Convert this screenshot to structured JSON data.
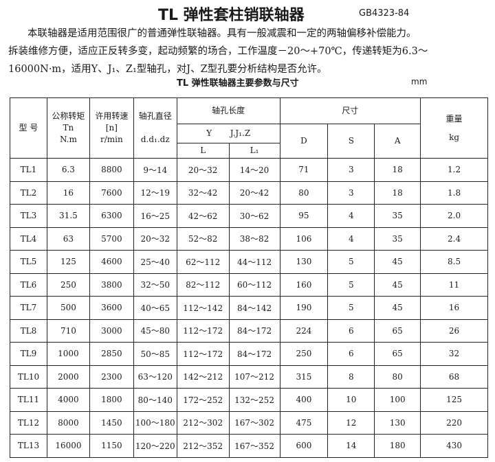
{
  "title": "TL 弹性套柱销联轴器",
  "standard": "GB4323-84",
  "paragraph": [
    "本联轴器是适用范围很广的普通弹性联轴器。具有一般减震和一定的两轴偏移补偿能力。",
    "拆装维修方便，适应正反转多变，起动频繁的场合，工作温度－20～+70℃，传递转矩为6.3～",
    "16000N·m，适用Y、J₁、Z₁型轴孔，对J、Z型孔要分析结构是否允许。"
  ],
  "table_title": "TL 弹性联轴器主要参数与尺寸",
  "unit": "mm",
  "headers": {
    "model": "型 号",
    "torque": [
      "公称转矩",
      "Tn",
      "N.m"
    ],
    "speed": [
      "许用转速",
      "[n]",
      "r/min"
    ],
    "bore": [
      "轴孔直径",
      "d.d₁.dz"
    ],
    "bore_length": "轴孔长度",
    "y": "Y",
    "jz": "J.J₁.Z",
    "L": "L",
    "L1": "L₁",
    "dims": "尺寸",
    "D": "D",
    "S": "S",
    "A": "A",
    "weight": [
      "重量",
      "kg"
    ]
  },
  "rows": [
    [
      "TL1",
      "6.3",
      "8800",
      "9～14",
      "20～32",
      "14～20",
      "71",
      "3",
      "18",
      "1.2"
    ],
    [
      "TL2",
      "16",
      "7600",
      "12～19",
      "32～42",
      "20～42",
      "80",
      "3",
      "18",
      "1.8"
    ],
    [
      "TL3",
      "31.5",
      "6300",
      "16～25",
      "42～62",
      "30～62",
      "95",
      "4",
      "35",
      "2.0"
    ],
    [
      "TL4",
      "63",
      "5700",
      "20～32",
      "52～82",
      "38～82",
      "106",
      "4",
      "35",
      "2.4"
    ],
    [
      "TL5",
      "125",
      "4600",
      "25～40",
      "62～112",
      "44～112",
      "130",
      "5",
      "45",
      "8.5"
    ],
    [
      "TL6",
      "250",
      "3800",
      "32～50",
      "82～112",
      "60～112",
      "160",
      "5",
      "45",
      "11"
    ],
    [
      "TL7",
      "500",
      "3600",
      "40～65",
      "112～142",
      "84～142",
      "190",
      "5",
      "45",
      "16"
    ],
    [
      "TL8",
      "710",
      "3000",
      "45～80",
      "112～172",
      "84～172",
      "224",
      "6",
      "65",
      "26"
    ],
    [
      "TL9",
      "1000",
      "2850",
      "50～85",
      "112～172",
      "84～172",
      "250",
      "6",
      "65",
      "32"
    ],
    [
      "TL10",
      "2000",
      "2300",
      "63～120",
      "142～212",
      "107～212",
      "315",
      "8",
      "80",
      "68"
    ],
    [
      "TL11",
      "4000",
      "1800",
      "80～140",
      "172～252",
      "132～252",
      "400",
      "10",
      "100",
      "125"
    ],
    [
      "TL12",
      "8000",
      "1450",
      "100～180",
      "212～302",
      "167～302",
      "475",
      "12",
      "130",
      "220"
    ],
    [
      "TL13",
      "16000",
      "1150",
      "120～220",
      "212～352",
      "167～352",
      "600",
      "14",
      "180",
      "430"
    ]
  ]
}
